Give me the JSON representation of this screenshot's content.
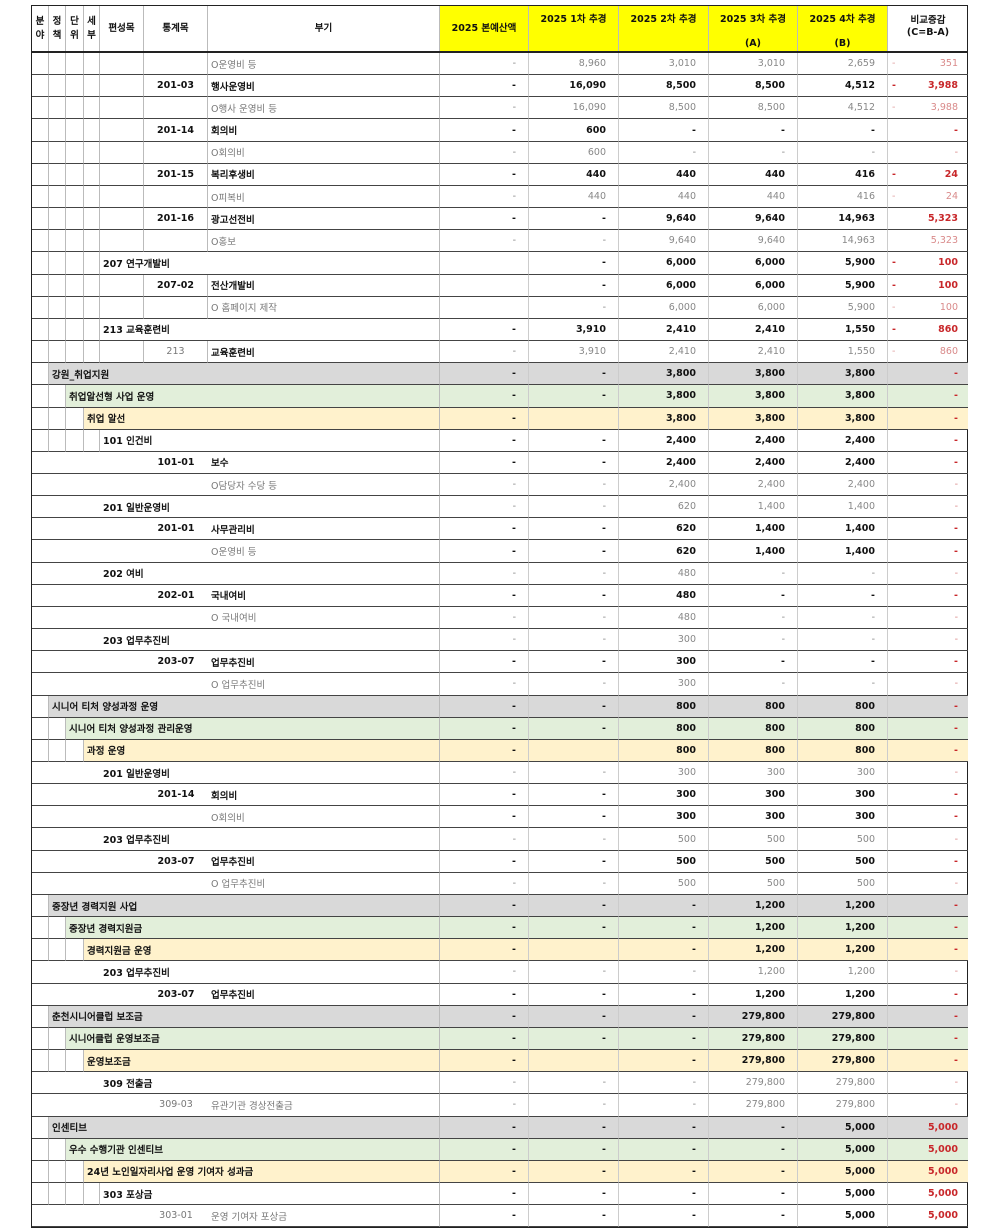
{
  "header": {
    "cols": [
      "분야",
      "정책",
      "단위",
      "세부",
      "편성목",
      "통계목",
      "부기"
    ],
    "budget": "2025 본예산액",
    "supp1": "2025 1차 추경",
    "supp2": "2025 2차 추경",
    "supp3": "2025 3차 추경",
    "supp3_sub": "(A)",
    "supp4": "2025 4차 추경",
    "supp4_sub": "(B)",
    "diff": "비교증감",
    "diff_sub": "(C=B-A)"
  },
  "colors": {
    "program": "#d9d9d9",
    "unit": "#e2efda",
    "task": "#fff2cc",
    "highlight": "#ffff00",
    "negative": "#c8272a"
  },
  "rows": [
    {
      "type": "detail",
      "code": "",
      "label": "O운영비 등",
      "values": [
        "-",
        "8,960",
        "3,010",
        "3,010",
        "2,659"
      ],
      "diff_sign": "-",
      "diff": "351",
      "style": "light"
    },
    {
      "type": "stat",
      "code": "201-03",
      "label": "행사운영비",
      "values": [
        "-",
        "16,090",
        "8,500",
        "8,500",
        "4,512"
      ],
      "diff_sign": "-",
      "diff": "3,988",
      "style": "bold"
    },
    {
      "type": "detail",
      "code": "",
      "label": "O행사 운영비 등",
      "values": [
        "-",
        "16,090",
        "8,500",
        "8,500",
        "4,512"
      ],
      "diff_sign": "-",
      "diff": "3,988",
      "style": "light"
    },
    {
      "type": "stat",
      "code": "201-14",
      "label": "회의비",
      "values": [
        "-",
        "600",
        "-",
        "-",
        "-"
      ],
      "diff_sign": "",
      "diff": "-",
      "style": "bold"
    },
    {
      "type": "detail",
      "code": "",
      "label": "O회의비",
      "values": [
        "-",
        "600",
        "-",
        "-",
        "-"
      ],
      "diff_sign": "",
      "diff": "-",
      "style": "light"
    },
    {
      "type": "stat",
      "code": "201-15",
      "label": "복리후생비",
      "values": [
        "-",
        "440",
        "440",
        "440",
        "416"
      ],
      "diff_sign": "-",
      "diff": "24",
      "style": "bold"
    },
    {
      "type": "detail",
      "code": "",
      "label": "O피복비",
      "values": [
        "-",
        "440",
        "440",
        "440",
        "416"
      ],
      "diff_sign": "-",
      "diff": "24",
      "style": "light"
    },
    {
      "type": "stat",
      "code": "201-16",
      "label": "광고선전비",
      "values": [
        "-",
        "-",
        "9,640",
        "9,640",
        "14,963"
      ],
      "diff_sign": "",
      "diff": "5,323",
      "style": "bold"
    },
    {
      "type": "detail",
      "code": "",
      "label": "O홍보",
      "values": [
        "-",
        "-",
        "9,640",
        "9,640",
        "14,963"
      ],
      "diff_sign": "",
      "diff": "5,323",
      "style": "light"
    },
    {
      "type": "item",
      "code": "",
      "label": "207 연구개발비",
      "values": [
        "",
        "-",
        "6,000",
        "6,000",
        "5,900"
      ],
      "diff_sign": "-",
      "diff": "100",
      "style": "bold"
    },
    {
      "type": "stat",
      "code": "207-02",
      "label": "전산개발비",
      "values": [
        "",
        "-",
        "6,000",
        "6,000",
        "5,900"
      ],
      "diff_sign": "-",
      "diff": "100",
      "style": "bold"
    },
    {
      "type": "detail",
      "code": "",
      "label": "O 홈페이지 제작",
      "values": [
        "",
        "-",
        "6,000",
        "6,000",
        "5,900"
      ],
      "diff_sign": "-",
      "diff": "100",
      "style": "light"
    },
    {
      "type": "item",
      "code": "",
      "label": "213 교육훈련비",
      "values": [
        "-",
        "3,910",
        "2,410",
        "2,410",
        "1,550"
      ],
      "diff_sign": "-",
      "diff": "860",
      "style": "bold"
    },
    {
      "type": "stat",
      "code": "213",
      "label": "교육훈련비",
      "values": [
        "-",
        "3,910",
        "2,410",
        "2,410",
        "1,550"
      ],
      "diff_sign": "-",
      "diff": "860",
      "style": "light"
    },
    {
      "type": "program",
      "code": "",
      "label": "강원_취업지원",
      "values": [
        "-",
        "-",
        "3,800",
        "3,800",
        "3,800"
      ],
      "diff_sign": "",
      "diff": "-",
      "style": "bold"
    },
    {
      "type": "unit",
      "code": "",
      "label": "취업알선형 사업 운영",
      "values": [
        "-",
        "-",
        "3,800",
        "3,800",
        "3,800"
      ],
      "diff_sign": "",
      "diff": "-",
      "style": "bold"
    },
    {
      "type": "task",
      "code": "",
      "label": "취업 알선",
      "values": [
        "-",
        "",
        "3,800",
        "3,800",
        "3,800"
      ],
      "diff_sign": "",
      "diff": "-",
      "style": "bold"
    },
    {
      "type": "item",
      "code": "",
      "label": "101 인건비",
      "values": [
        "-",
        "-",
        "2,400",
        "2,400",
        "2,400"
      ],
      "diff_sign": "",
      "diff": "-",
      "style": "bold"
    },
    {
      "type": "stat",
      "code": "101-01",
      "label": "보수",
      "values": [
        "-",
        "-",
        "2,400",
        "2,400",
        "2,400"
      ],
      "diff_sign": "",
      "diff": "-",
      "style": "bold"
    },
    {
      "type": "detail",
      "code": "",
      "label": "O담당자 수당 등",
      "values": [
        "-",
        "-",
        "2,400",
        "2,400",
        "2,400"
      ],
      "diff_sign": "",
      "diff": "-",
      "style": "light"
    },
    {
      "type": "item",
      "code": "",
      "label": "201 일반운영비",
      "values": [
        "-",
        "-",
        "620",
        "1,400",
        "1,400"
      ],
      "diff_sign": "",
      "diff": "-",
      "style": "light"
    },
    {
      "type": "stat",
      "code": "201-01",
      "label": "사무관리비",
      "values": [
        "-",
        "-",
        "620",
        "1,400",
        "1,400"
      ],
      "diff_sign": "",
      "diff": "-",
      "style": "bold"
    },
    {
      "type": "detail",
      "code": "",
      "label": "O운영비 등",
      "values": [
        "-",
        "-",
        "620",
        "1,400",
        "1,400"
      ],
      "diff_sign": "",
      "diff": "-",
      "style": "bold"
    },
    {
      "type": "item",
      "code": "",
      "label": "202 여비",
      "values": [
        "-",
        "-",
        "480",
        "-",
        "-"
      ],
      "diff_sign": "",
      "diff": "-",
      "style": "light"
    },
    {
      "type": "stat",
      "code": "202-01",
      "label": "국내여비",
      "values": [
        "-",
        "-",
        "480",
        "-",
        "-"
      ],
      "diff_sign": "",
      "diff": "-",
      "style": "bold"
    },
    {
      "type": "detail",
      "code": "",
      "label": "O 국내여비",
      "values": [
        "-",
        "-",
        "480",
        "-",
        "-"
      ],
      "diff_sign": "",
      "diff": "-",
      "style": "light"
    },
    {
      "type": "item",
      "code": "",
      "label": "203 업무추진비",
      "values": [
        "-",
        "-",
        "300",
        "-",
        "-"
      ],
      "diff_sign": "",
      "diff": "-",
      "style": "light"
    },
    {
      "type": "stat",
      "code": "203-07",
      "label": "업무추진비",
      "values": [
        "-",
        "-",
        "300",
        "-",
        "-"
      ],
      "diff_sign": "",
      "diff": "-",
      "style": "bold"
    },
    {
      "type": "detail",
      "code": "",
      "label": "O 업무추진비",
      "values": [
        "-",
        "-",
        "300",
        "-",
        "-"
      ],
      "diff_sign": "",
      "diff": "-",
      "style": "light"
    },
    {
      "type": "program",
      "code": "",
      "label": "시니어 티처 양성과정 운영",
      "values": [
        "-",
        "-",
        "800",
        "800",
        "800"
      ],
      "diff_sign": "",
      "diff": "-",
      "style": "bold"
    },
    {
      "type": "unit",
      "code": "",
      "label": "시니어 티처 양성과정 관리운영",
      "values": [
        "-",
        "-",
        "800",
        "800",
        "800"
      ],
      "diff_sign": "",
      "diff": "-",
      "style": "bold"
    },
    {
      "type": "task",
      "code": "",
      "label": "과정 운영",
      "values": [
        "-",
        "",
        "800",
        "800",
        "800"
      ],
      "diff_sign": "",
      "diff": "-",
      "style": "bold"
    },
    {
      "type": "item",
      "code": "",
      "label": "201 일반운영비",
      "values": [
        "-",
        "-",
        "300",
        "300",
        "300"
      ],
      "diff_sign": "",
      "diff": "-",
      "style": "light"
    },
    {
      "type": "stat",
      "code": "201-14",
      "label": "회의비",
      "values": [
        "-",
        "-",
        "300",
        "300",
        "300"
      ],
      "diff_sign": "",
      "diff": "-",
      "style": "bold"
    },
    {
      "type": "detail",
      "code": "",
      "label": "O회의비",
      "values": [
        "-",
        "-",
        "300",
        "300",
        "300"
      ],
      "diff_sign": "",
      "diff": "-",
      "style": "bold"
    },
    {
      "type": "item",
      "code": "",
      "label": "203 업무추진비",
      "values": [
        "-",
        "-",
        "500",
        "500",
        "500"
      ],
      "diff_sign": "",
      "diff": "-",
      "style": "light"
    },
    {
      "type": "stat",
      "code": "203-07",
      "label": "업무추진비",
      "values": [
        "-",
        "-",
        "500",
        "500",
        "500"
      ],
      "diff_sign": "",
      "diff": "-",
      "style": "bold"
    },
    {
      "type": "detail",
      "code": "",
      "label": "O 업무추진비",
      "values": [
        "-",
        "-",
        "500",
        "500",
        "500"
      ],
      "diff_sign": "",
      "diff": "-",
      "style": "light"
    },
    {
      "type": "program",
      "code": "",
      "label": "중장년 경력지원 사업",
      "values": [
        "-",
        "-",
        "-",
        "1,200",
        "1,200"
      ],
      "diff_sign": "",
      "diff": "-",
      "style": "bold"
    },
    {
      "type": "unit",
      "code": "",
      "label": "중장년 경력지원금",
      "values": [
        "-",
        "-",
        "-",
        "1,200",
        "1,200"
      ],
      "diff_sign": "",
      "diff": "-",
      "style": "bold"
    },
    {
      "type": "task",
      "code": "",
      "label": "경력지원금 운영",
      "values": [
        "-",
        "",
        "-",
        "1,200",
        "1,200"
      ],
      "diff_sign": "",
      "diff": "-",
      "style": "bold"
    },
    {
      "type": "item",
      "code": "",
      "label": "203 업무추진비",
      "values": [
        "-",
        "-",
        "-",
        "1,200",
        "1,200"
      ],
      "diff_sign": "",
      "diff": "-",
      "style": "light"
    },
    {
      "type": "stat",
      "code": "203-07",
      "label": "업무추진비",
      "values": [
        "-",
        "-",
        "-",
        "1,200",
        "1,200"
      ],
      "diff_sign": "",
      "diff": "-",
      "style": "bold"
    },
    {
      "type": "program",
      "code": "",
      "label": "춘천시니어클럽 보조금",
      "values": [
        "-",
        "-",
        "-",
        "279,800",
        "279,800"
      ],
      "diff_sign": "",
      "diff": "-",
      "style": "bold"
    },
    {
      "type": "unit",
      "code": "",
      "label": "시니어클럽 운영보조금",
      "values": [
        "-",
        "-",
        "-",
        "279,800",
        "279,800"
      ],
      "diff_sign": "",
      "diff": "-",
      "style": "bold"
    },
    {
      "type": "task",
      "code": "",
      "label": "운영보조금",
      "values": [
        "-",
        "",
        "-",
        "279,800",
        "279,800"
      ],
      "diff_sign": "",
      "diff": "-",
      "style": "bold"
    },
    {
      "type": "item",
      "code": "",
      "label": "309 전출금",
      "values": [
        "-",
        "-",
        "-",
        "279,800",
        "279,800"
      ],
      "diff_sign": "",
      "diff": "-",
      "style": "light"
    },
    {
      "type": "stat_light",
      "code": "309-03",
      "label": "유관기관 경상전출금",
      "values": [
        "-",
        "-",
        "-",
        "279,800",
        "279,800"
      ],
      "diff_sign": "",
      "diff": "-",
      "style": "light"
    },
    {
      "type": "program",
      "code": "",
      "label": "인센티브",
      "values": [
        "-",
        "-",
        "-",
        "-",
        "5,000"
      ],
      "diff_sign": "",
      "diff": "5,000",
      "style": "bold"
    },
    {
      "type": "unit",
      "code": "",
      "label": "우수 수행기관 인센티브",
      "values": [
        "-",
        "-",
        "-",
        "-",
        "5,000"
      ],
      "diff_sign": "",
      "diff": "5,000",
      "style": "bold"
    },
    {
      "type": "task",
      "code": "",
      "label": "24년 노인일자리사업 운영 기여자 성과금",
      "values": [
        "-",
        "-",
        "-",
        "-",
        "5,000"
      ],
      "diff_sign": "",
      "diff": "5,000",
      "style": "bold"
    },
    {
      "type": "item",
      "code": "",
      "label": "303 포상금",
      "values": [
        "-",
        "-",
        "-",
        "-",
        "5,000"
      ],
      "diff_sign": "",
      "diff": "5,000",
      "style": "bold"
    },
    {
      "type": "stat_light",
      "code": "303-01",
      "label": "운영 기여자 포상금",
      "values": [
        "-",
        "-",
        "-",
        "-",
        "5,000"
      ],
      "diff_sign": "",
      "diff": "5,000",
      "style": "bold"
    }
  ]
}
